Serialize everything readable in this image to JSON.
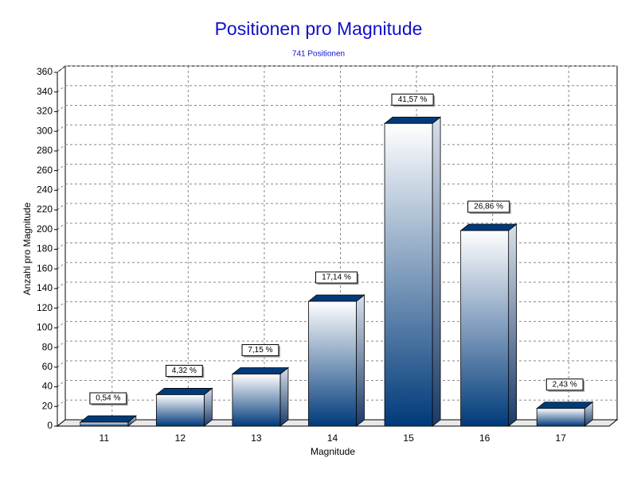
{
  "chart_data": {
    "type": "bar3d",
    "title": "Positionen pro Magnitude",
    "subtitle": "741 Positionen",
    "x_label": "Magnitude",
    "y_label": "Anzahl pro Magnitude",
    "categories": [
      "11",
      "12",
      "13",
      "14",
      "15",
      "16",
      "17"
    ],
    "values": [
      4,
      32,
      53,
      127,
      308,
      199,
      18
    ],
    "percent_values": [
      0.54,
      4.32,
      7.15,
      17.14,
      41.57,
      26.86,
      2.43
    ],
    "percent_labels": [
      "0,54 %",
      "4,32 %",
      "7,15 %",
      "17,14 %",
      "41,57 %",
      "26,86 %",
      "2,43 %"
    ],
    "color": "#003a7a",
    "title_color": "#1010c8",
    "ylim": [
      0,
      360
    ],
    "yticks": [
      0,
      20,
      40,
      60,
      80,
      100,
      120,
      140,
      160,
      180,
      200,
      220,
      240,
      260,
      280,
      300,
      320,
      340,
      360
    ],
    "grid": true
  }
}
